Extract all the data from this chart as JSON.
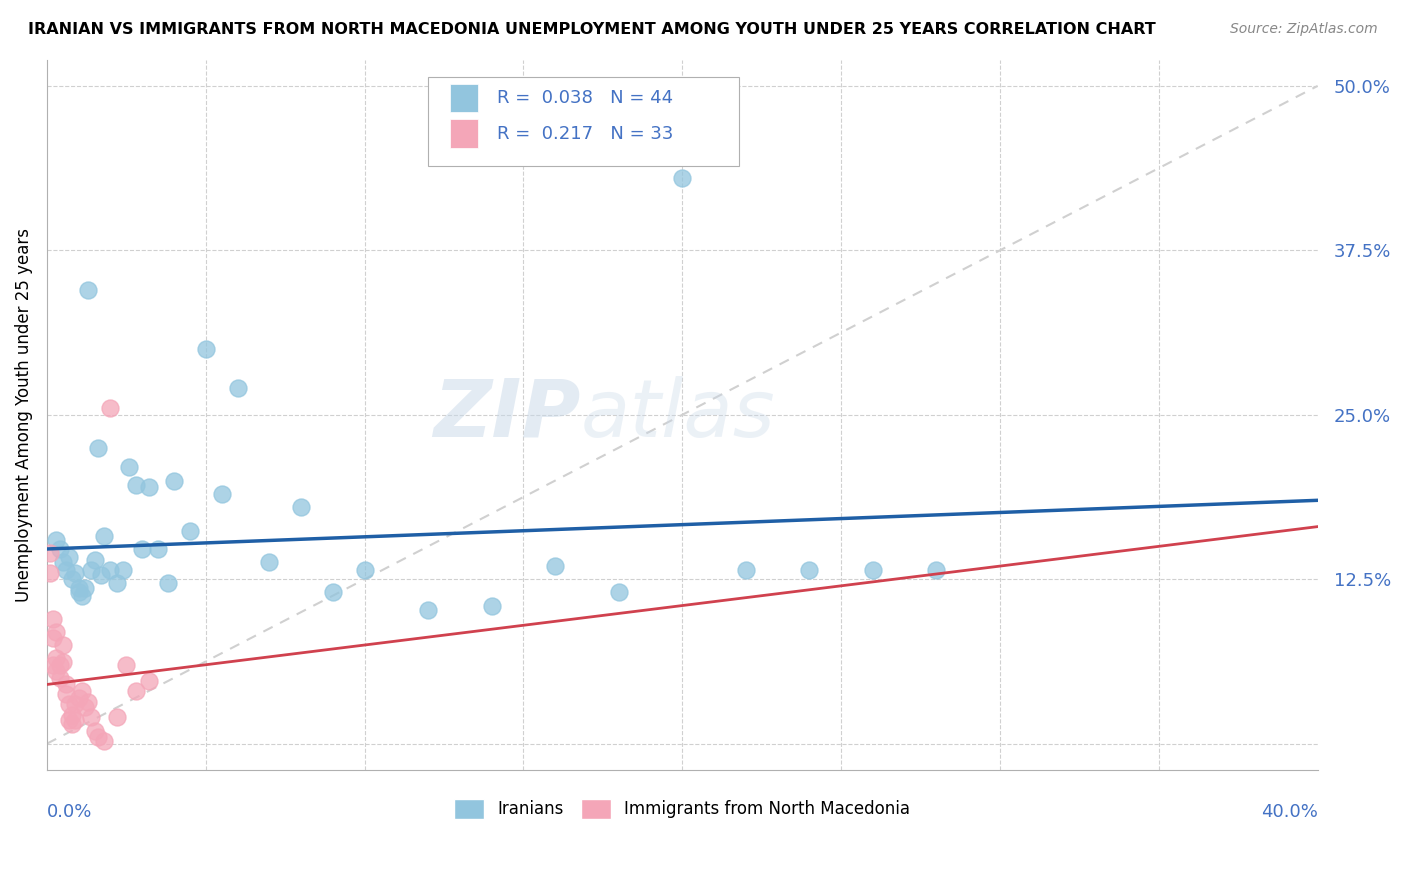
{
  "title": "IRANIAN VS IMMIGRANTS FROM NORTH MACEDONIA UNEMPLOYMENT AMONG YOUTH UNDER 25 YEARS CORRELATION CHART",
  "source": "Source: ZipAtlas.com",
  "ylabel": "Unemployment Among Youth under 25 years",
  "ytick_labels": [
    "",
    "12.5%",
    "25.0%",
    "37.5%",
    "50.0%"
  ],
  "ytick_vals": [
    0,
    0.125,
    0.25,
    0.375,
    0.5
  ],
  "xlim": [
    0.0,
    0.4
  ],
  "ylim": [
    -0.02,
    0.52
  ],
  "R_iranians": 0.038,
  "N_iranians": 44,
  "R_macedonia": 0.217,
  "N_macedonia": 33,
  "color_iranians": "#92c5de",
  "color_macedonia": "#f4a6b8",
  "color_trend_iranians": "#1f5fa6",
  "color_trend_macedonia": "#d0414e",
  "color_diagonal": "#d0d0d0",
  "watermark_zip": "ZIP",
  "watermark_atlas": "atlas",
  "iranians_x": [
    0.003,
    0.004,
    0.005,
    0.006,
    0.007,
    0.008,
    0.009,
    0.01,
    0.01,
    0.011,
    0.012,
    0.013,
    0.014,
    0.015,
    0.016,
    0.017,
    0.018,
    0.02,
    0.022,
    0.024,
    0.026,
    0.028,
    0.03,
    0.032,
    0.035,
    0.038,
    0.04,
    0.045,
    0.05,
    0.055,
    0.06,
    0.07,
    0.08,
    0.09,
    0.1,
    0.12,
    0.14,
    0.16,
    0.18,
    0.2,
    0.22,
    0.24,
    0.26,
    0.28
  ],
  "iranians_y": [
    0.155,
    0.148,
    0.138,
    0.132,
    0.142,
    0.125,
    0.13,
    0.118,
    0.115,
    0.112,
    0.118,
    0.345,
    0.132,
    0.14,
    0.225,
    0.128,
    0.158,
    0.132,
    0.122,
    0.132,
    0.21,
    0.197,
    0.148,
    0.195,
    0.148,
    0.122,
    0.2,
    0.162,
    0.3,
    0.19,
    0.27,
    0.138,
    0.18,
    0.115,
    0.132,
    0.102,
    0.105,
    0.135,
    0.115,
    0.43,
    0.132,
    0.132,
    0.132,
    0.132
  ],
  "macedonia_x": [
    0.001,
    0.001,
    0.002,
    0.002,
    0.002,
    0.003,
    0.003,
    0.003,
    0.004,
    0.004,
    0.005,
    0.005,
    0.006,
    0.006,
    0.007,
    0.007,
    0.008,
    0.008,
    0.009,
    0.009,
    0.01,
    0.011,
    0.012,
    0.013,
    0.014,
    0.015,
    0.016,
    0.018,
    0.02,
    0.022,
    0.025,
    0.028,
    0.032
  ],
  "macedonia_y": [
    0.13,
    0.145,
    0.06,
    0.095,
    0.08,
    0.065,
    0.055,
    0.085,
    0.06,
    0.05,
    0.062,
    0.075,
    0.045,
    0.038,
    0.03,
    0.018,
    0.022,
    0.015,
    0.018,
    0.03,
    0.035,
    0.04,
    0.028,
    0.032,
    0.02,
    0.01,
    0.005,
    0.002,
    0.255,
    0.02,
    0.06,
    0.04,
    0.048
  ],
  "iran_trend_y0": 0.148,
  "iran_trend_y1": 0.185,
  "mac_trend_y0": 0.045,
  "mac_trend_y1": 0.165
}
